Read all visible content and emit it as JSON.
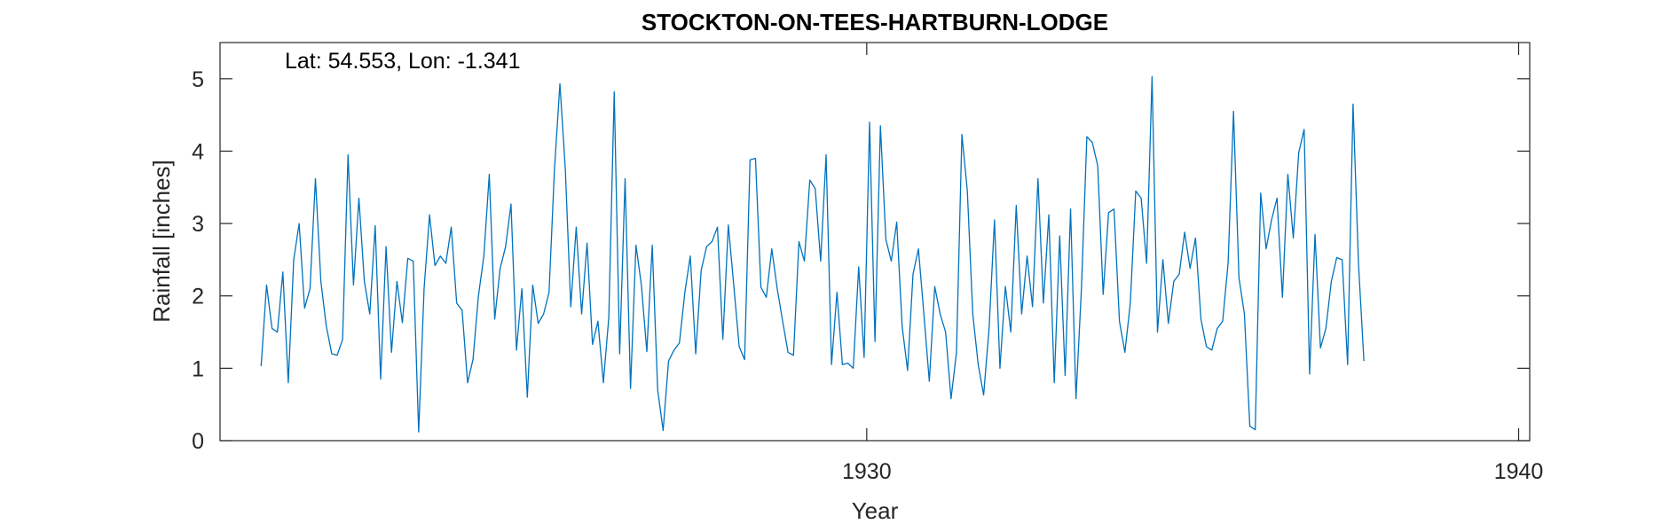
{
  "chart_data": {
    "type": "line",
    "title": "STOCKTON-ON-TEES-HARTBURN-LODGE",
    "annotation": "Lat: 54.553, Lon: -1.341",
    "xlabel": "Year",
    "ylabel": "Rainfall [inches]",
    "xlim": [
      1920.08,
      1940.17
    ],
    "ylim": [
      0,
      5.5
    ],
    "xticks": [
      1930,
      1940
    ],
    "xtick_labels": [
      "1930",
      "1940"
    ],
    "yticks": [
      0,
      1,
      2,
      3,
      4,
      5
    ],
    "ytick_labels": [
      "0",
      "1",
      "2",
      "3",
      "4",
      "5"
    ],
    "grid": false,
    "line_color": "#0072BD",
    "x_start": 1920.71,
    "x_step_months": 1,
    "series": [
      {
        "values": [
          1.03,
          2.15,
          1.55,
          1.5,
          2.33,
          0.8,
          2.5,
          3.0,
          1.83,
          2.1,
          3.62,
          2.2,
          1.58,
          1.2,
          1.18,
          1.4,
          3.95,
          2.15,
          3.35,
          2.2,
          1.75,
          2.97,
          0.85,
          2.68,
          1.22,
          2.2,
          1.63,
          2.52,
          2.48,
          0.12,
          2.1,
          3.12,
          2.42,
          2.55,
          2.45,
          2.95,
          1.9,
          1.8,
          0.8,
          1.12,
          2.0,
          2.55,
          3.68,
          1.68,
          2.38,
          2.68,
          3.27,
          1.25,
          2.1,
          0.6,
          2.15,
          1.62,
          1.75,
          2.05,
          3.75,
          4.93,
          3.75,
          1.85,
          2.95,
          1.75,
          2.73,
          1.33,
          1.65,
          0.8,
          1.7,
          4.82,
          1.2,
          3.62,
          0.72,
          2.7,
          2.15,
          1.23,
          2.7,
          0.7,
          0.14,
          1.1,
          1.25,
          1.35,
          2.05,
          2.55,
          1.2,
          2.35,
          2.68,
          2.75,
          2.95,
          1.4,
          2.98,
          2.15,
          1.3,
          1.12,
          3.88,
          3.9,
          2.12,
          1.98,
          2.65,
          2.1,
          1.65,
          1.22,
          1.18,
          2.75,
          2.48,
          3.6,
          3.48,
          2.48,
          3.95,
          1.05,
          2.05,
          1.05,
          1.07,
          1.0,
          2.4,
          1.15,
          4.4,
          1.37,
          4.35,
          2.78,
          2.48,
          3.02,
          1.58,
          0.97,
          2.3,
          2.65,
          1.75,
          0.82,
          2.13,
          1.75,
          1.5,
          0.58,
          1.22,
          4.23,
          3.45,
          1.75,
          1.05,
          0.63,
          1.55,
          3.05,
          1.0,
          2.13,
          1.5,
          3.25,
          1.75,
          2.55,
          1.85,
          3.62,
          1.9,
          3.12,
          0.8,
          2.83,
          0.9,
          3.2,
          0.58,
          2.1,
          4.2,
          4.12,
          3.8,
          2.02,
          3.15,
          3.2,
          1.65,
          1.22,
          1.9,
          3.45,
          3.35,
          2.45,
          5.03,
          1.5,
          2.5,
          1.62,
          2.2,
          2.3,
          2.88,
          2.38,
          2.8,
          1.68,
          1.3,
          1.25,
          1.55,
          1.65,
          2.45,
          4.55,
          2.25,
          1.75,
          0.2,
          0.15,
          3.42,
          2.65,
          3.05,
          3.35,
          1.98,
          3.68,
          2.8,
          3.98,
          4.3,
          0.92,
          2.85,
          1.28,
          1.55,
          2.2,
          2.53,
          2.5,
          1.05,
          4.65,
          2.45,
          1.1
        ]
      }
    ]
  }
}
